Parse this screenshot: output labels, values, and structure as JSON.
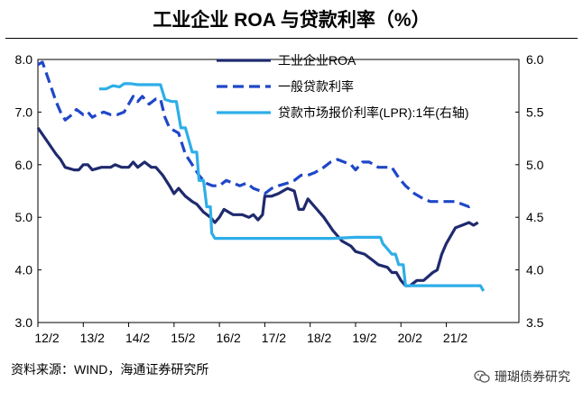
{
  "title": "工业企业 ROA 与贷款利率（%）",
  "source": "资料来源：WIND，海通证券研究所",
  "watermark": "珊瑚债券研究",
  "chart_data": {
    "type": "line",
    "left_axis": {
      "range": [
        3.0,
        8.0
      ],
      "ticks": [
        "3.0",
        "4.0",
        "5.0",
        "6.0",
        "7.0",
        "8.0"
      ]
    },
    "right_axis": {
      "range": [
        3.5,
        6.0
      ],
      "ticks": [
        "3.5",
        "4.0",
        "4.5",
        "5.0",
        "5.5",
        "6.0"
      ]
    },
    "x_axis": {
      "range": [
        2012.0,
        2022.6
      ],
      "ticks": [
        {
          "t": 2012.0,
          "label": "12/2"
        },
        {
          "t": 2013.0,
          "label": "13/2"
        },
        {
          "t": 2014.0,
          "label": "14/2"
        },
        {
          "t": 2015.0,
          "label": "15/2"
        },
        {
          "t": 2016.0,
          "label": "16/2"
        },
        {
          "t": 2017.0,
          "label": "17/2"
        },
        {
          "t": 2018.0,
          "label": "18/2"
        },
        {
          "t": 2019.0,
          "label": "19/2"
        },
        {
          "t": 2020.0,
          "label": "20/2"
        },
        {
          "t": 2021.0,
          "label": "21/2"
        }
      ]
    },
    "legend": [
      {
        "key": "roa",
        "label": "工业企业ROA"
      },
      {
        "key": "loan",
        "label": "一般贷款利率"
      },
      {
        "key": "lpr",
        "label": "贷款市场报价利率(LPR):1年(右轴)"
      }
    ],
    "colors": {
      "roa": "#1f2a6e",
      "loan": "#1f47c8",
      "lpr": "#2eaee8"
    },
    "series": [
      {
        "key": "roa",
        "name": "工业企业ROA",
        "axis": "left",
        "style": "solid",
        "points": [
          [
            2012.0,
            6.7
          ],
          [
            2012.2,
            6.45
          ],
          [
            2012.4,
            6.2
          ],
          [
            2012.5,
            6.1
          ],
          [
            2012.6,
            5.95
          ],
          [
            2012.8,
            5.9
          ],
          [
            2012.9,
            5.9
          ],
          [
            2013.0,
            6.0
          ],
          [
            2013.1,
            6.0
          ],
          [
            2013.2,
            5.9
          ],
          [
            2013.4,
            5.95
          ],
          [
            2013.6,
            5.95
          ],
          [
            2013.7,
            6.0
          ],
          [
            2013.85,
            5.95
          ],
          [
            2014.0,
            5.95
          ],
          [
            2014.1,
            6.05
          ],
          [
            2014.2,
            5.95
          ],
          [
            2014.35,
            6.05
          ],
          [
            2014.5,
            5.95
          ],
          [
            2014.6,
            5.95
          ],
          [
            2014.75,
            5.8
          ],
          [
            2014.9,
            5.6
          ],
          [
            2015.0,
            5.45
          ],
          [
            2015.1,
            5.55
          ],
          [
            2015.25,
            5.4
          ],
          [
            2015.4,
            5.3
          ],
          [
            2015.5,
            5.25
          ],
          [
            2015.65,
            5.1
          ],
          [
            2015.8,
            5.0
          ],
          [
            2015.9,
            4.9
          ],
          [
            2016.0,
            5.0
          ],
          [
            2016.1,
            5.15
          ],
          [
            2016.3,
            5.05
          ],
          [
            2016.5,
            5.05
          ],
          [
            2016.65,
            5.0
          ],
          [
            2016.75,
            5.05
          ],
          [
            2016.85,
            4.95
          ],
          [
            2016.95,
            5.05
          ],
          [
            2017.0,
            5.4
          ],
          [
            2017.15,
            5.4
          ],
          [
            2017.3,
            5.45
          ],
          [
            2017.5,
            5.55
          ],
          [
            2017.65,
            5.5
          ],
          [
            2017.75,
            5.15
          ],
          [
            2017.85,
            5.15
          ],
          [
            2017.95,
            5.35
          ],
          [
            2018.1,
            5.2
          ],
          [
            2018.3,
            5.0
          ],
          [
            2018.5,
            4.75
          ],
          [
            2018.7,
            4.55
          ],
          [
            2018.9,
            4.45
          ],
          [
            2019.0,
            4.35
          ],
          [
            2019.2,
            4.3
          ],
          [
            2019.35,
            4.2
          ],
          [
            2019.5,
            4.1
          ],
          [
            2019.7,
            4.05
          ],
          [
            2019.8,
            3.95
          ],
          [
            2019.9,
            3.95
          ],
          [
            2020.0,
            3.8
          ],
          [
            2020.1,
            3.7
          ],
          [
            2020.2,
            3.7
          ],
          [
            2020.35,
            3.8
          ],
          [
            2020.5,
            3.8
          ],
          [
            2020.7,
            3.95
          ],
          [
            2020.8,
            4.0
          ],
          [
            2020.9,
            4.3
          ],
          [
            2021.0,
            4.5
          ],
          [
            2021.1,
            4.65
          ],
          [
            2021.2,
            4.8
          ],
          [
            2021.35,
            4.85
          ],
          [
            2021.5,
            4.9
          ],
          [
            2021.6,
            4.85
          ],
          [
            2021.7,
            4.9
          ]
        ]
      },
      {
        "key": "loan",
        "name": "一般贷款利率",
        "axis": "left",
        "style": "dashed",
        "points": [
          [
            2012.0,
            7.9
          ],
          [
            2012.1,
            7.95
          ],
          [
            2012.2,
            7.7
          ],
          [
            2012.3,
            7.45
          ],
          [
            2012.4,
            7.2
          ],
          [
            2012.5,
            7.0
          ],
          [
            2012.6,
            6.85
          ],
          [
            2012.75,
            6.95
          ],
          [
            2012.85,
            7.05
          ],
          [
            2013.0,
            6.95
          ],
          [
            2013.1,
            7.0
          ],
          [
            2013.2,
            6.9
          ],
          [
            2013.3,
            6.95
          ],
          [
            2013.45,
            7.0
          ],
          [
            2013.6,
            6.95
          ],
          [
            2013.75,
            6.95
          ],
          [
            2013.9,
            7.0
          ],
          [
            2014.0,
            7.15
          ],
          [
            2014.1,
            7.3
          ],
          [
            2014.2,
            7.2
          ],
          [
            2014.3,
            7.3
          ],
          [
            2014.45,
            7.15
          ],
          [
            2014.6,
            7.25
          ],
          [
            2014.7,
            7.25
          ],
          [
            2014.8,
            6.9
          ],
          [
            2014.9,
            6.7
          ],
          [
            2015.1,
            6.6
          ],
          [
            2015.25,
            6.2
          ],
          [
            2015.4,
            6.0
          ],
          [
            2015.55,
            5.8
          ],
          [
            2015.7,
            5.65
          ],
          [
            2015.85,
            5.6
          ],
          [
            2016.0,
            5.6
          ],
          [
            2016.15,
            5.7
          ],
          [
            2016.3,
            5.65
          ],
          [
            2016.45,
            5.6
          ],
          [
            2016.6,
            5.65
          ],
          [
            2016.75,
            5.55
          ],
          [
            2016.9,
            5.5
          ],
          [
            2017.0,
            5.45
          ],
          [
            2017.15,
            5.55
          ],
          [
            2017.3,
            5.6
          ],
          [
            2017.5,
            5.65
          ],
          [
            2017.65,
            5.7
          ],
          [
            2017.8,
            5.8
          ],
          [
            2017.95,
            5.8
          ],
          [
            2018.1,
            5.85
          ],
          [
            2018.3,
            5.95
          ],
          [
            2018.45,
            6.05
          ],
          [
            2018.6,
            6.1
          ],
          [
            2018.75,
            6.05
          ],
          [
            2018.9,
            6.0
          ],
          [
            2019.0,
            5.9
          ],
          [
            2019.15,
            6.05
          ],
          [
            2019.3,
            6.05
          ],
          [
            2019.5,
            5.95
          ],
          [
            2019.65,
            5.95
          ],
          [
            2019.8,
            5.95
          ],
          [
            2019.95,
            5.75
          ],
          [
            2020.1,
            5.6
          ],
          [
            2020.3,
            5.45
          ],
          [
            2020.5,
            5.35
          ],
          [
            2020.65,
            5.3
          ],
          [
            2020.8,
            5.3
          ],
          [
            2021.0,
            5.3
          ],
          [
            2021.2,
            5.3
          ],
          [
            2021.35,
            5.25
          ],
          [
            2021.5,
            5.2
          ],
          [
            2021.6,
            5.25
          ]
        ]
      },
      {
        "key": "lpr",
        "name": "贷款市场报价利率(LPR):1年(右轴)",
        "axis": "right",
        "style": "solid",
        "points": [
          [
            2013.35,
            5.72
          ],
          [
            2013.5,
            5.72
          ],
          [
            2013.65,
            5.75
          ],
          [
            2013.8,
            5.74
          ],
          [
            2013.9,
            5.77
          ],
          [
            2014.05,
            5.77
          ],
          [
            2014.2,
            5.76
          ],
          [
            2014.4,
            5.76
          ],
          [
            2014.55,
            5.76
          ],
          [
            2014.7,
            5.76
          ],
          [
            2014.8,
            5.62
          ],
          [
            2014.95,
            5.6
          ],
          [
            2015.05,
            5.6
          ],
          [
            2015.15,
            5.35
          ],
          [
            2015.25,
            5.35
          ],
          [
            2015.4,
            5.12
          ],
          [
            2015.5,
            5.12
          ],
          [
            2015.55,
            4.85
          ],
          [
            2015.65,
            4.85
          ],
          [
            2015.72,
            4.6
          ],
          [
            2015.8,
            4.6
          ],
          [
            2015.83,
            4.35
          ],
          [
            2015.9,
            4.3
          ],
          [
            2016.3,
            4.3
          ],
          [
            2016.8,
            4.3
          ],
          [
            2017.5,
            4.3
          ],
          [
            2018.5,
            4.3
          ],
          [
            2019.0,
            4.31
          ],
          [
            2019.3,
            4.31
          ],
          [
            2019.55,
            4.31
          ],
          [
            2019.6,
            4.25
          ],
          [
            2019.7,
            4.2
          ],
          [
            2019.8,
            4.15
          ],
          [
            2019.88,
            4.15
          ],
          [
            2019.95,
            4.05
          ],
          [
            2020.05,
            4.05
          ],
          [
            2020.1,
            3.85
          ],
          [
            2020.3,
            3.85
          ],
          [
            2020.6,
            3.85
          ],
          [
            2021.0,
            3.85
          ],
          [
            2021.5,
            3.85
          ],
          [
            2021.75,
            3.85
          ],
          [
            2021.82,
            3.8
          ]
        ]
      }
    ]
  }
}
